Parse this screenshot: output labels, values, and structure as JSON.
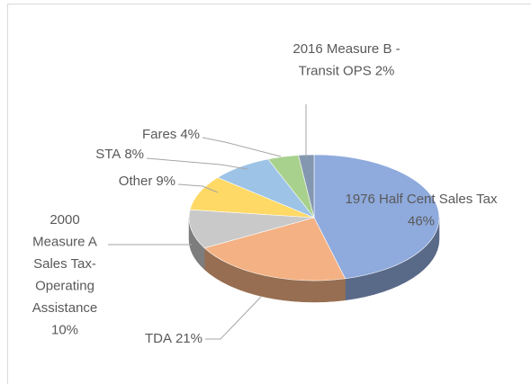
{
  "chart_data": {
    "type": "pie",
    "categories": [
      "1976 Half Cent Sales Tax",
      "TDA",
      "2000 Measure A Sales Tax-Operating Assistance",
      "Other",
      "STA",
      "Fares",
      "2016 Measure B - Transit OPS"
    ],
    "values": [
      46,
      21,
      10,
      9,
      8,
      4,
      2
    ],
    "value_labels": [
      "46%",
      "21%",
      "10%",
      "9%",
      "8%",
      "4%",
      "2%"
    ],
    "colors": [
      "#8faadc",
      "#f4b183",
      "#c9c9c9",
      "#ffd966",
      "#9dc3e6",
      "#a9d18e",
      "#8497b0"
    ]
  }
}
